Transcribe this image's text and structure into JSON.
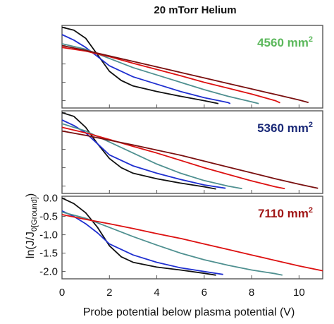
{
  "chart_data": {
    "type": "line",
    "title": "20 mTorr Helium",
    "xlabel": "Probe potential below plasma potential (V)",
    "ylabel": "ln(J/J0[Ground])",
    "ylabel_parts": {
      "prefix": "ln(J/J",
      "sub": "0[Ground]",
      "suffix": ")"
    },
    "xlim": [
      0,
      11
    ],
    "ylim": [
      -2.2,
      0.05
    ],
    "x_ticks": [
      "0",
      "2",
      "4",
      "6",
      "8",
      "10"
    ],
    "y_ticks": [
      "0.0",
      "-0.5",
      "-1.0",
      "-1.5",
      "-2.0"
    ],
    "colors": {
      "black": "#111111",
      "blue": "#1f2fd0",
      "teal": "#4f9090",
      "red": "#dd1111",
      "darkred": "#7a1010"
    },
    "panels": [
      {
        "area_label": "4560 mm",
        "area_sup": "2",
        "label_color": "#5cb85c",
        "series": [
          {
            "color": "black",
            "x": [
              0,
              0.5,
              1,
              1.5,
              2,
              2.5,
              3,
              4,
              5,
              6,
              6.6
            ],
            "y": [
              0,
              -0.08,
              -0.3,
              -0.75,
              -1.2,
              -1.45,
              -1.6,
              -1.75,
              -1.88,
              -2.0,
              -2.08
            ]
          },
          {
            "color": "blue",
            "x": [
              0,
              0.5,
              1,
              1.5,
              2,
              3,
              4,
              5,
              6,
              7,
              7.1
            ],
            "y": [
              -0.2,
              -0.35,
              -0.55,
              -0.8,
              -1.05,
              -1.35,
              -1.55,
              -1.75,
              -1.92,
              -2.05,
              -2.08
            ]
          },
          {
            "color": "teal",
            "x": [
              0,
              1,
              2,
              3,
              4,
              5,
              6,
              7,
              8,
              8.3
            ],
            "y": [
              -0.45,
              -0.6,
              -0.85,
              -1.1,
              -1.3,
              -1.5,
              -1.7,
              -1.88,
              -2.03,
              -2.08
            ]
          },
          {
            "color": "red",
            "x": [
              0,
              1,
              2,
              3,
              4,
              5,
              6,
              7,
              8,
              9,
              9.2
            ],
            "y": [
              -0.55,
              -0.65,
              -0.8,
              -0.98,
              -1.15,
              -1.32,
              -1.5,
              -1.66,
              -1.82,
              -2.0,
              -2.06
            ]
          },
          {
            "color": "darkred",
            "x": [
              0,
              1,
              2,
              3,
              4,
              5,
              6,
              7,
              8,
              9,
              10,
              10.4
            ],
            "y": [
              -0.5,
              -0.63,
              -0.78,
              -0.93,
              -1.08,
              -1.23,
              -1.38,
              -1.53,
              -1.68,
              -1.83,
              -1.98,
              -2.05
            ]
          }
        ]
      },
      {
        "area_label": "5360 mm",
        "area_sup": "2",
        "label_color": "#1b2a78",
        "series": [
          {
            "color": "black",
            "x": [
              0,
              0.5,
              1,
              1.5,
              2,
              2.5,
              3,
              4,
              5,
              6,
              6.5
            ],
            "y": [
              0,
              -0.1,
              -0.4,
              -0.85,
              -1.25,
              -1.5,
              -1.65,
              -1.8,
              -1.92,
              -2.02,
              -2.08
            ]
          },
          {
            "color": "blue",
            "x": [
              0,
              0.5,
              1,
              1.5,
              2,
              3,
              4,
              5,
              6,
              6.9
            ],
            "y": [
              -0.2,
              -0.35,
              -0.55,
              -0.85,
              -1.15,
              -1.45,
              -1.65,
              -1.82,
              -1.97,
              -2.06
            ]
          },
          {
            "color": "teal",
            "x": [
              0,
              1,
              2,
              3,
              4,
              5,
              6,
              7,
              7.6
            ],
            "y": [
              -0.3,
              -0.5,
              -0.8,
              -1.1,
              -1.4,
              -1.65,
              -1.85,
              -2.0,
              -2.07
            ]
          },
          {
            "color": "red",
            "x": [
              0,
              1,
              2,
              3,
              4,
              5,
              6,
              7,
              8,
              9,
              9.4
            ],
            "y": [
              -0.4,
              -0.55,
              -0.73,
              -0.92,
              -1.1,
              -1.3,
              -1.5,
              -1.68,
              -1.86,
              -2.02,
              -2.07
            ]
          },
          {
            "color": "darkred",
            "x": [
              0,
              1,
              2,
              3,
              4,
              5,
              6,
              7,
              8,
              9,
              10,
              10.8
            ],
            "y": [
              -0.5,
              -0.62,
              -0.75,
              -0.88,
              -1.02,
              -1.16,
              -1.32,
              -1.48,
              -1.64,
              -1.8,
              -1.95,
              -2.06
            ]
          }
        ]
      },
      {
        "area_label": "7110 mm",
        "area_sup": "2",
        "label_color": "#a01515",
        "series": [
          {
            "color": "black",
            "x": [
              0,
              0.5,
              1,
              1.5,
              2,
              2.5,
              3,
              4,
              5,
              6,
              6.5
            ],
            "y": [
              0,
              -0.15,
              -0.4,
              -0.8,
              -1.3,
              -1.6,
              -1.75,
              -1.88,
              -1.96,
              -2.05,
              -2.1
            ]
          },
          {
            "color": "blue",
            "x": [
              0,
              0.5,
              1,
              1.5,
              2,
              3,
              4,
              5,
              6,
              6.8
            ],
            "y": [
              -0.35,
              -0.5,
              -0.7,
              -0.95,
              -1.25,
              -1.55,
              -1.75,
              -1.9,
              -2.0,
              -2.08
            ]
          },
          {
            "color": "teal",
            "x": [
              0,
              1,
              2,
              3,
              4,
              5,
              6,
              7,
              8,
              9,
              9.3
            ],
            "y": [
              -0.38,
              -0.55,
              -0.8,
              -1.05,
              -1.28,
              -1.5,
              -1.68,
              -1.83,
              -1.96,
              -2.06,
              -2.1
            ]
          },
          {
            "color": "red",
            "x": [
              0,
              1,
              2,
              3,
              4,
              5,
              6,
              7,
              8,
              9,
              10,
              11
            ],
            "y": [
              -0.45,
              -0.58,
              -0.7,
              -0.83,
              -0.97,
              -1.1,
              -1.25,
              -1.4,
              -1.55,
              -1.7,
              -1.85,
              -1.98
            ]
          }
        ]
      }
    ]
  }
}
